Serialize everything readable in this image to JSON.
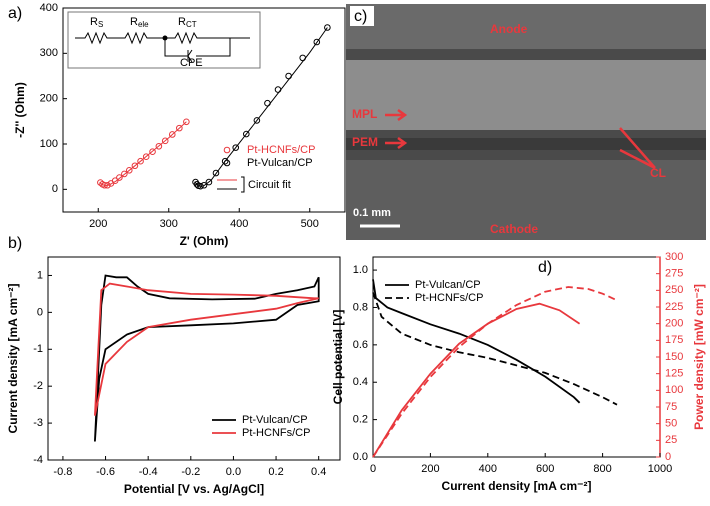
{
  "chart_data": [
    {
      "type": "scatter",
      "panel_label": "a)",
      "xlabel": "Z' (Ohm)",
      "ylabel": "-Z'' (Ohm)",
      "xlim": [
        150,
        550
      ],
      "ylim": [
        -50,
        400
      ],
      "xticks": [
        200,
        300,
        400,
        500
      ],
      "yticks": [
        0,
        100,
        200,
        300,
        400
      ],
      "legend": "lower right",
      "fit_label": "Circuit fit",
      "inset_labels": [
        [
          "R",
          "S"
        ],
        [
          "R",
          "ele"
        ],
        [
          "R",
          "CT"
        ],
        [
          "CPE"
        ]
      ],
      "series": [
        {
          "name": "Pt-HCNFs/CP",
          "color": "#e8383d",
          "style": "circle",
          "x": [
            203,
            206,
            209,
            213,
            218,
            224,
            230,
            237,
            244,
            252,
            260,
            268,
            277,
            286,
            295,
            305,
            315,
            325
          ],
          "values": [
            15,
            11,
            9,
            9,
            13,
            19,
            26,
            34,
            42,
            52,
            62,
            72,
            83,
            95,
            107,
            121,
            135,
            149
          ]
        },
        {
          "name": "Pt-Vulcan/CP",
          "color": "#000000",
          "style": "circle",
          "x": [
            338,
            340,
            342,
            345,
            350,
            357,
            367,
            380,
            395,
            410,
            425,
            440,
            455,
            470,
            490,
            510,
            525
          ],
          "values": [
            16,
            11,
            8,
            7,
            9,
            16,
            36,
            62,
            92,
            122,
            152,
            190,
            220,
            250,
            290,
            325,
            357
          ]
        },
        {
          "color": "#e8383d",
          "style": "line",
          "x": [
            202,
            205,
            210,
            216,
            225,
            240,
            260,
            280,
            300,
            325
          ],
          "values": [
            16,
            11,
            8,
            10,
            18,
            37,
            62,
            88,
            114,
            149
          ]
        },
        {
          "color": "#000000",
          "style": "line",
          "x": [
            337,
            340,
            344,
            350,
            360,
            380,
            420,
            460,
            500,
            525
          ],
          "values": [
            17,
            10,
            7,
            8,
            20,
            62,
            142,
            222,
            302,
            357
          ]
        }
      ]
    },
    {
      "type": "line",
      "panel_label": "b)",
      "xlabel": "Potential [V vs. Ag/AgCl]",
      "ylabel": "Current density [mA cm⁻²]",
      "xlim": [
        -0.87,
        0.5
      ],
      "ylim": [
        -4,
        1.5
      ],
      "xticks": [
        -0.8,
        -0.6,
        -0.4,
        -0.2,
        {
          "value": 0,
          "label": "0.0"
        },
        0.2,
        0.4
      ],
      "yticks": [
        -4,
        -3,
        -2,
        -1,
        0,
        1
      ],
      "legend": "lower right",
      "series": [
        {
          "name": "Pt-Vulcan/CP",
          "color": "#000000",
          "style": "line",
          "x": [
            -0.65,
            -0.62,
            -0.6,
            -0.55,
            -0.5,
            -0.45,
            -0.4,
            -0.3,
            -0.1,
            0.1,
            0.2,
            0.3,
            0.38,
            0.4,
            0.4,
            0.3,
            0.2,
            0,
            -0.2,
            -0.4,
            -0.5,
            -0.6,
            -0.63,
            -0.65
          ],
          "values": [
            -3.5,
            0.2,
            1.0,
            0.95,
            0.95,
            0.7,
            0.5,
            0.38,
            0.35,
            0.37,
            0.5,
            0.6,
            0.7,
            0.95,
            0.3,
            0.2,
            -0.2,
            -0.3,
            -0.35,
            -0.4,
            -0.6,
            -1.0,
            -1.8,
            -3.5
          ]
        },
        {
          "name": "Pt-HCNFs/CP",
          "color": "#e8383d",
          "style": "line",
          "x": [
            -0.65,
            -0.62,
            -0.58,
            -0.5,
            -0.4,
            -0.2,
            0,
            0.2,
            0.38,
            0.4,
            0.3,
            0.2,
            0,
            -0.2,
            -0.4,
            -0.5,
            -0.6,
            -0.65
          ],
          "values": [
            -2.8,
            0.6,
            0.78,
            0.7,
            0.6,
            0.5,
            0.48,
            0.45,
            0.38,
            0.38,
            0.25,
            0.1,
            -0.05,
            -0.2,
            -0.4,
            -0.8,
            -1.4,
            -2.8
          ]
        }
      ]
    },
    {
      "type": "line",
      "panel_label": "d)",
      "xlabel": "Current density [mA cm⁻²]",
      "ylabel": "Cell potential [V]",
      "y2label": "Power density [mW cm⁻²]",
      "xlim": [
        0,
        1000
      ],
      "ylim": [
        0,
        1.07
      ],
      "y2lim": [
        0,
        300
      ],
      "xticks": [
        0,
        200,
        400,
        600,
        800,
        1000
      ],
      "yticks": [
        {
          "value": 0,
          "label": "0.0"
        },
        0.2,
        0.4,
        0.6,
        0.8,
        {
          "value": 1,
          "label": "1.0"
        }
      ],
      "y2ticks": [
        0,
        25,
        50,
        75,
        100,
        125,
        150,
        175,
        200,
        225,
        250,
        275,
        300
      ],
      "legend": "upper left",
      "y2color": "#e8383d",
      "series": [
        {
          "name": "Pt-Vulcan/CP",
          "color": "#000000",
          "style": "line",
          "x": [
            0,
            10,
            50,
            100,
            200,
            300,
            400,
            500,
            600,
            700,
            720
          ],
          "values": [
            0.95,
            0.85,
            0.8,
            0.77,
            0.71,
            0.66,
            0.6,
            0.52,
            0.43,
            0.32,
            0.29
          ]
        },
        {
          "name": "Pt-HCNFs/CP",
          "color": "#000000",
          "style": "dashed",
          "x": [
            0,
            30,
            100,
            200,
            300,
            400,
            500,
            600,
            700,
            800,
            850
          ],
          "values": [
            0.88,
            0.75,
            0.66,
            0.6,
            0.56,
            0.53,
            0.49,
            0.45,
            0.39,
            0.32,
            0.28
          ]
        },
        {
          "color": "#e8383d",
          "style": "line",
          "axis": "y2",
          "x": [
            0,
            100,
            200,
            300,
            400,
            500,
            580,
            650,
            720
          ],
          "values": [
            0,
            70,
            125,
            170,
            200,
            222,
            230,
            220,
            200
          ]
        },
        {
          "color": "#e8383d",
          "style": "dashed",
          "axis": "y2",
          "x": [
            0,
            100,
            200,
            300,
            400,
            500,
            600,
            680,
            750,
            800,
            850
          ],
          "values": [
            0,
            65,
            120,
            165,
            200,
            228,
            248,
            255,
            252,
            245,
            235
          ]
        }
      ]
    }
  ],
  "image": {
    "panel_label": "c)",
    "anode": "Anode",
    "mpl": "MPL",
    "pem": "PEM",
    "cl": "CL",
    "cathode": "Cathode",
    "scale": "0.1 mm"
  }
}
